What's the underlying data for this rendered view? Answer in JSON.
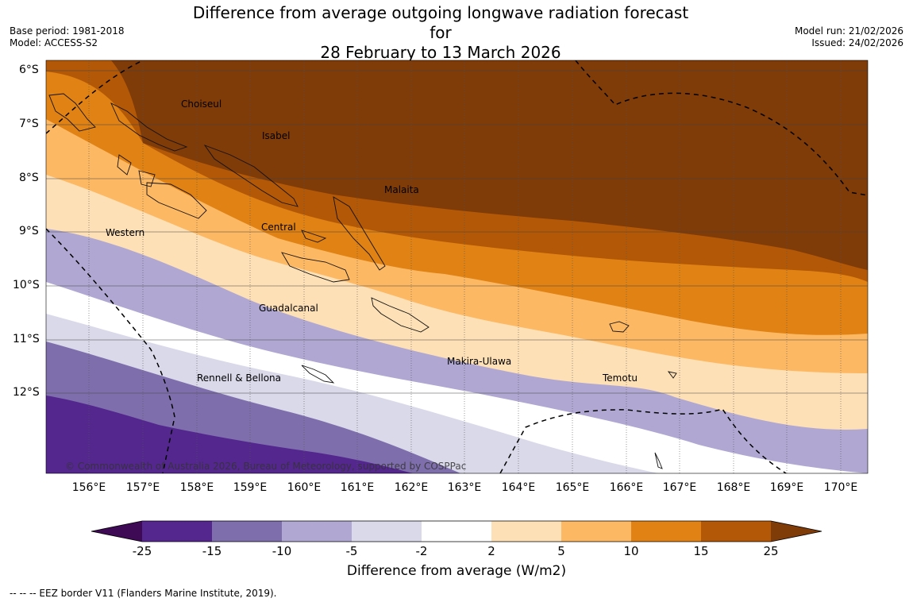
{
  "title_line1": "Difference from average outgoing longwave radiation forecast for",
  "title_line2": "28 February to 13 March 2026",
  "base_period": "Base period: 1981-2018",
  "model": "Model: ACCESS-S2",
  "model_run": "Model run: 21/02/2026",
  "issued": "Issued: 24/02/2026",
  "lat_labels": [
    "6°S",
    "7°S",
    "8°S",
    "9°S",
    "10°S",
    "11°S",
    "12°S"
  ],
  "lon_labels": [
    "156°E",
    "157°E",
    "158°E",
    "159°E",
    "160°E",
    "161°E",
    "162°E",
    "163°E",
    "164°E",
    "165°E",
    "166°E",
    "167°E",
    "168°E",
    "169°E",
    "170°E"
  ],
  "places": {
    "choiseul": "Choiseul",
    "isabel": "Isabel",
    "malaita": "Malaita",
    "western": "Western",
    "central": "Central",
    "guadalcanal": "Guadalcanal",
    "makira": "Makira-Ulawa",
    "rennell": "Rennell & Bellona",
    "temotu": "Temotu"
  },
  "copyright": "© Commonwealth of Australia 2026, Bureau of Meteorology, supported by COSPPac",
  "colorbar": {
    "ticks": [
      "-25",
      "-15",
      "-10",
      "-5",
      "-2",
      "2",
      "5",
      "10",
      "15",
      "25"
    ],
    "colors": [
      "#54278f",
      "#7e6fac",
      "#b0a8d2",
      "#d9d9ea",
      "#ffffff",
      "#fee0b6",
      "#fdb863",
      "#e08214",
      "#b35806",
      "#7f3b08"
    ],
    "low_extend_color": "#3f0a55",
    "title": "Difference from average (W/m2)"
  },
  "eez_note": "--  --  -- EEZ border V11 (Flanders Marine Institute, 2019)."
}
